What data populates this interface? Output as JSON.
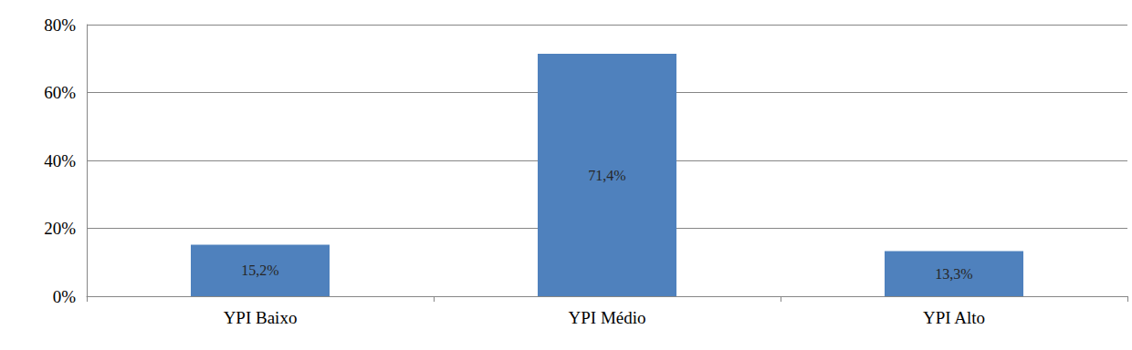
{
  "chart_data": {
    "type": "bar",
    "categories": [
      "YPI Baixo",
      "YPI Médio",
      "YPI Alto"
    ],
    "values": [
      15.2,
      71.4,
      13.3
    ],
    "value_labels": [
      "15,2%",
      "71,4%",
      "13,3%"
    ],
    "color": "#4f81bd",
    "ylim": [
      0,
      80
    ],
    "yticks": [
      {
        "value": 0,
        "label": "0%"
      },
      {
        "value": 20,
        "label": "20%"
      },
      {
        "value": 40,
        "label": "40%"
      },
      {
        "value": 60,
        "label": "60%"
      },
      {
        "value": 80,
        "label": "80%"
      }
    ],
    "grid": true,
    "data_labels": true
  }
}
